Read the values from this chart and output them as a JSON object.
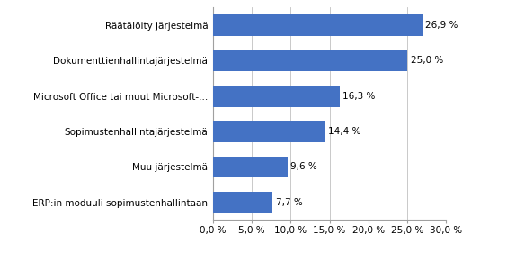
{
  "categories": [
    "ERP:in moduuli sopimustenhallintaan",
    "Muu järjestelmä",
    "Sopimustenhallintajärjestelmä",
    "Microsoft Office tai muut Microsoft-...",
    "Dokumenttienhallintajärjestelmä",
    "Räätälöity järjestelmä"
  ],
  "values": [
    7.7,
    9.6,
    14.4,
    16.3,
    25.0,
    26.9
  ],
  "bar_color": "#4472C4",
  "xlim": [
    0,
    30
  ],
  "xtick_values": [
    0,
    5,
    10,
    15,
    20,
    25,
    30
  ],
  "xtick_labels": [
    "0,0 %",
    "5,0 %",
    "10,0 %",
    "15,0 %",
    "20,0 %",
    "25,0 %",
    "30,0 %"
  ],
  "value_labels": [
    "7,7 %",
    "9,6 %",
    "14,4 %",
    "16,3 %",
    "25,0 %",
    "26,9 %"
  ],
  "background_color": "#ffffff",
  "bar_height": 0.6,
  "label_fontsize": 7.5,
  "tick_fontsize": 7.5,
  "grid_color": "#c0c0c0",
  "spine_color": "#a0a0a0"
}
